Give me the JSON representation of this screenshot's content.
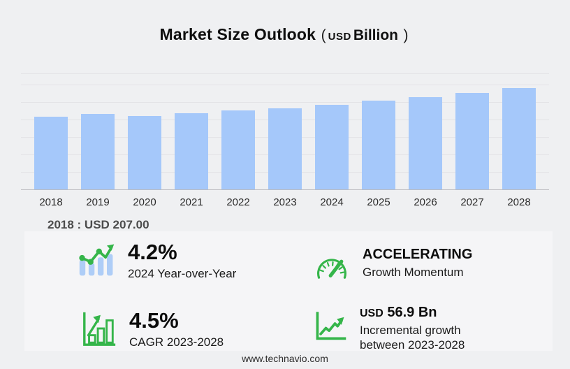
{
  "title": {
    "main": "Market Size Outlook",
    "paren_open": "(",
    "currency": "USD",
    "unit": "Billion",
    "paren_close": ")"
  },
  "chart_data": {
    "type": "bar",
    "title": "Market Size Outlook (USD Billion)",
    "categories": [
      "2018",
      "2019",
      "2020",
      "2021",
      "2022",
      "2023",
      "2024",
      "2025",
      "2026",
      "2027",
      "2028"
    ],
    "values": [
      207.0,
      215.5,
      208.5,
      216.0,
      224.1,
      231.3,
      241.0,
      251.9,
      263.2,
      275.1,
      288.2
    ],
    "ylabel": "USD Billion",
    "xlabel": "",
    "ylim": [
      0,
      330
    ],
    "grid": true,
    "legend": false,
    "bar_color": "#a5c8fa",
    "annotation": "2018 : USD  207.00"
  },
  "stats": [
    {
      "icon": "bar-chart-trend-icon",
      "value": "4.2%",
      "label": "2024 Year-over-Year"
    },
    {
      "icon": "speedometer-icon",
      "value": "ACCELERATING",
      "label": "Growth Momentum"
    },
    {
      "icon": "growth-bars-icon",
      "value": "4.5%",
      "label": "CAGR 2023-2028"
    },
    {
      "icon": "line-growth-icon",
      "value_prefix": "USD",
      "value_main": "56.9 Bn",
      "label": "Incremental growth between 2023-2028"
    }
  ],
  "footer": {
    "url": "www.technavio.com"
  },
  "colors": {
    "bar": "#a5c8fa",
    "accent_green": "#35b54a",
    "icon_bar_blue": "#aecdf7",
    "background": "#eff0f2",
    "panel": "#f5f5f7"
  }
}
